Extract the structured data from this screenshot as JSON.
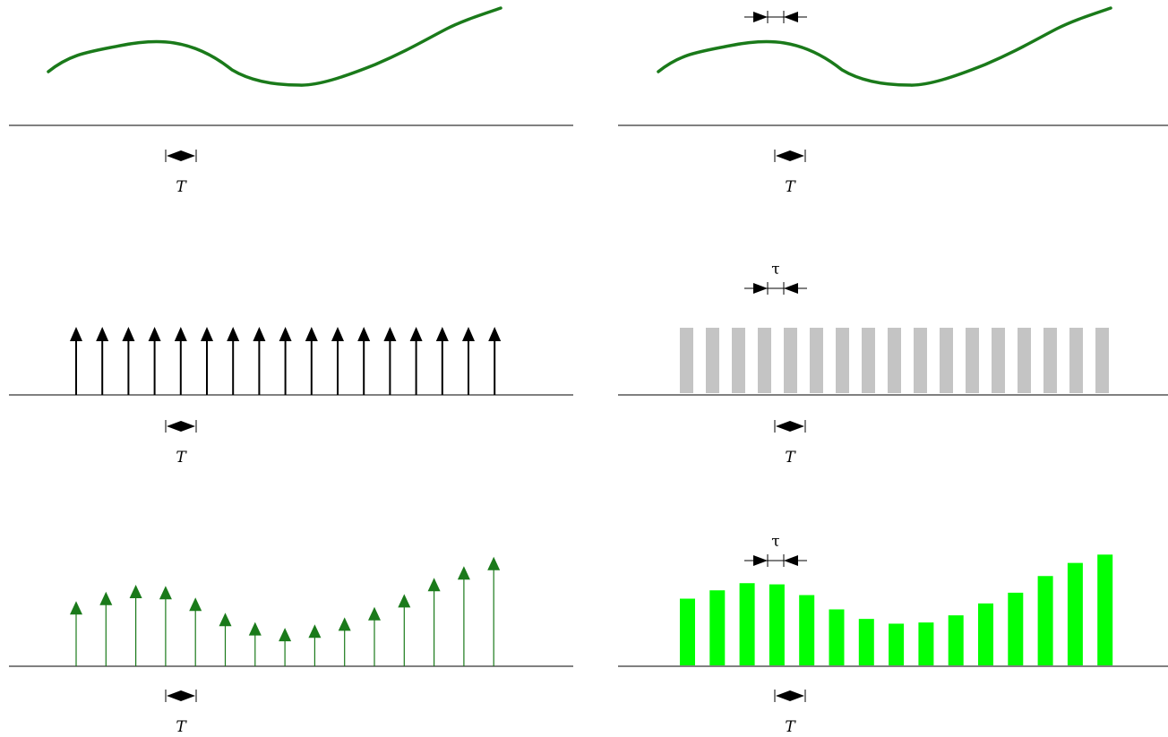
{
  "labels": {
    "period": "T",
    "pulse_width": "τ"
  },
  "colors": {
    "signal": "#1a7a1a",
    "impulse": "#000000",
    "pulse_train": "#c4c4c4",
    "sampled_impulse": "#1a7a1a",
    "sampled_pulse": "#00ff00",
    "axis": "#000000"
  },
  "panels": [
    {
      "id": "continuous-signal-left",
      "kind": "curve"
    },
    {
      "id": "continuous-signal-right",
      "kind": "curve",
      "tau_marker": true
    },
    {
      "id": "impulse-train",
      "kind": "impulses",
      "count": 17
    },
    {
      "id": "rectangular-pulse-train",
      "kind": "pulses",
      "count": 17,
      "tau_marker": true
    },
    {
      "id": "impulse-sampled-signal",
      "kind": "sampled-impulses",
      "samples": [
        0.56,
        0.64,
        0.7,
        0.69,
        0.59,
        0.46,
        0.38,
        0.33,
        0.36,
        0.42,
        0.51,
        0.62,
        0.76,
        0.86,
        0.94
      ]
    },
    {
      "id": "pulse-sampled-signal",
      "kind": "sampled-pulses",
      "tau_marker": true,
      "samples": [
        0.56,
        0.63,
        0.69,
        0.68,
        0.59,
        0.47,
        0.39,
        0.35,
        0.36,
        0.42,
        0.52,
        0.61,
        0.75,
        0.86,
        0.93
      ]
    }
  ]
}
